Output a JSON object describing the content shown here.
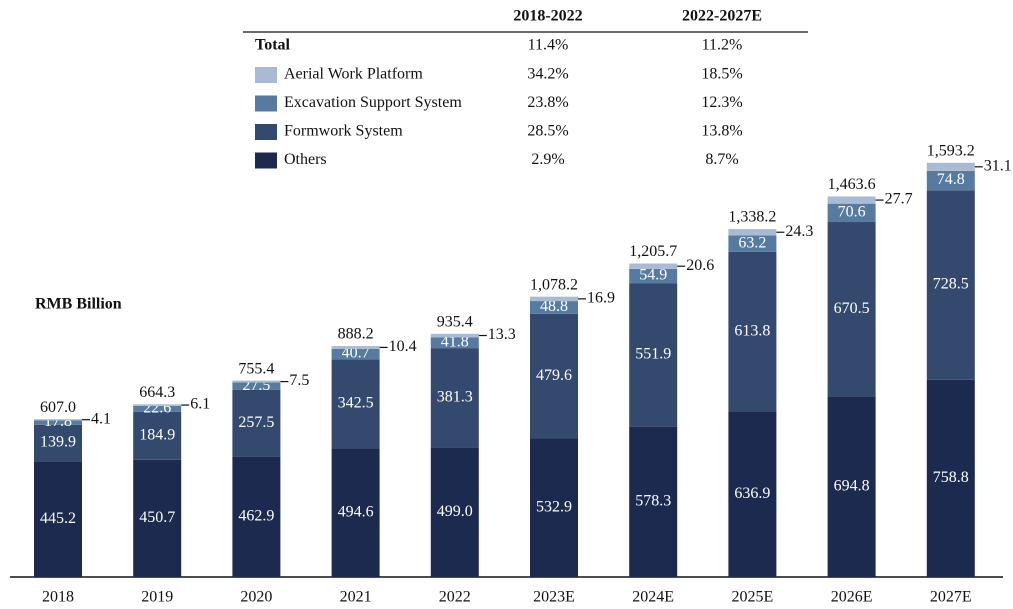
{
  "chart_data": {
    "type": "stacked_bar",
    "unit_label": "RMB Billion",
    "categories": [
      "2018",
      "2019",
      "2020",
      "2021",
      "2022",
      "2023E",
      "2024E",
      "2025E",
      "2026E",
      "2027E"
    ],
    "series": [
      {
        "name": "Others",
        "color": "#1b2a4e",
        "cagr": [
          "2.9%",
          "8.7%"
        ],
        "values": [
          445.2,
          450.7,
          462.9,
          494.6,
          499.0,
          532.9,
          578.3,
          636.9,
          694.8,
          758.8
        ],
        "value_labels": [
          "445.2",
          "450.7",
          "462.9",
          "494.6",
          "499.0",
          "532.9",
          "578.3",
          "636.9",
          "694.8",
          "758.8"
        ]
      },
      {
        "name": "Formwork System",
        "color": "#34496e",
        "cagr": [
          "28.5%",
          "13.8%"
        ],
        "values": [
          139.9,
          184.9,
          257.5,
          342.5,
          381.3,
          479.6,
          551.9,
          613.8,
          670.5,
          728.5
        ]
      },
      {
        "name": "Excavation Support System",
        "color": "#577ba0",
        "cagr": [
          "23.8%",
          "12.3%"
        ],
        "values": [
          17.8,
          22.6,
          27.5,
          40.7,
          41.8,
          48.8,
          54.9,
          63.2,
          70.6,
          74.8
        ]
      },
      {
        "name": "Aerial Work Platform",
        "color": "#a9bbd4",
        "cagr": [
          "34.2%",
          "18.5%"
        ],
        "values": [
          4.1,
          6.1,
          7.5,
          10.4,
          13.3,
          16.9,
          20.6,
          24.3,
          27.7,
          31.1
        ]
      }
    ],
    "totals": {
      "values": [
        607.0,
        664.3,
        755.4,
        888.2,
        935.4,
        1078.2,
        1205.7,
        1338.2,
        1463.6,
        1593.2
      ],
      "value_labels": [
        "607.0",
        "664.3",
        "755.4",
        "888.2",
        "935.4",
        "1,078.2",
        "1,205.7",
        "1,338.2",
        "1,463.6",
        "1,593.2"
      ]
    },
    "cagr_table": {
      "columns": [
        "2018-2022",
        "2022-2027E"
      ],
      "total_label": "Total",
      "total_values": [
        "11.4%",
        "11.2%"
      ]
    }
  }
}
